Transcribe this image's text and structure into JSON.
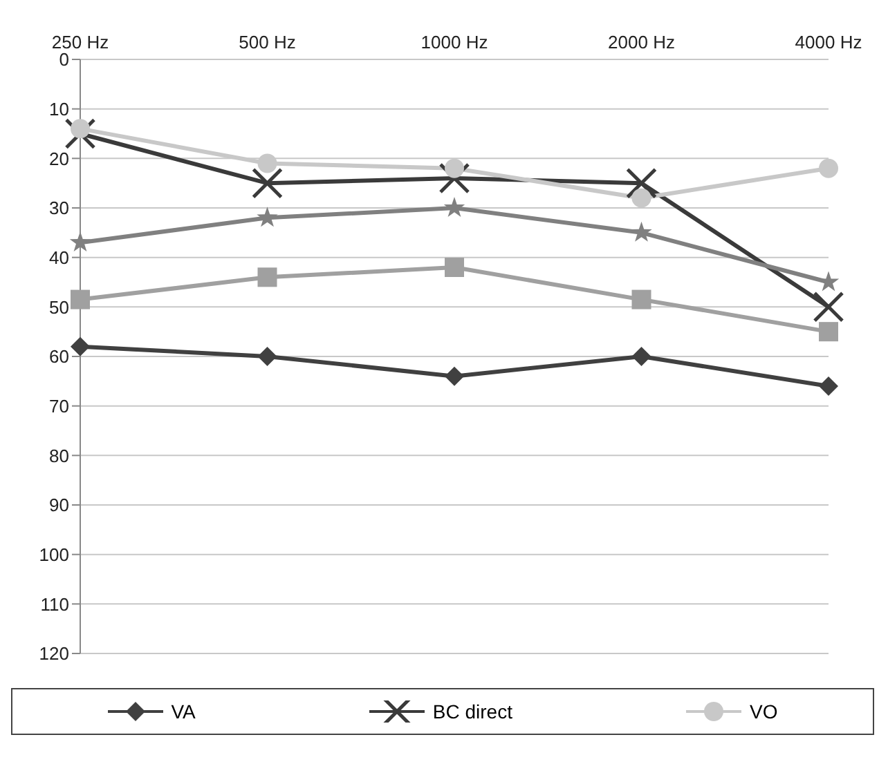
{
  "chart_data": {
    "type": "line",
    "categories": [
      "250 Hz",
      "500 Hz",
      "1000 Hz",
      "2000 Hz",
      "4000 Hz"
    ],
    "series": [
      {
        "name": "VA",
        "color": "#404040",
        "marker": "diamond",
        "values": [
          58,
          60,
          64,
          60,
          66
        ]
      },
      {
        "color": "#a0a0a0",
        "marker": "square",
        "values": [
          48.5,
          44,
          42,
          48.5,
          55
        ]
      },
      {
        "name": "BC direct",
        "color": "#3a3a3a",
        "marker": "cross",
        "values": [
          15,
          25,
          24,
          25,
          50
        ]
      },
      {
        "color": "#808080",
        "marker": "star",
        "values": [
          37,
          32,
          30,
          35,
          45
        ]
      },
      {
        "name": "VO",
        "color": "#c8c8c8",
        "marker": "circle",
        "values": [
          14,
          21,
          22,
          28,
          22
        ]
      }
    ],
    "ylim": [
      120,
      0
    ],
    "yticks": [
      0,
      10,
      20,
      30,
      40,
      50,
      60,
      70,
      80,
      90,
      100,
      110,
      120
    ],
    "grid": "y",
    "legend": "bottom",
    "line_style": "solid"
  }
}
